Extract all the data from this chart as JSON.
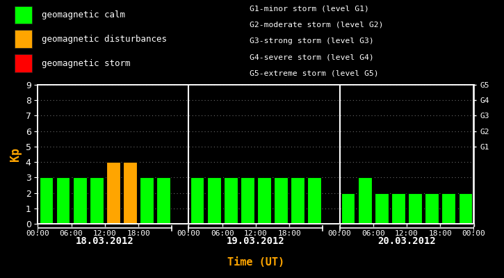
{
  "background_color": "#000000",
  "plot_bg_color": "#000000",
  "text_color": "#ffffff",
  "title_color": "#ffa500",
  "days": [
    "18.03.2012",
    "19.03.2012",
    "20.03.2012"
  ],
  "kp_values": [
    [
      3,
      3,
      3,
      3,
      4,
      4,
      3,
      3
    ],
    [
      3,
      3,
      3,
      3,
      3,
      3,
      3,
      3
    ],
    [
      2,
      3,
      2,
      2,
      2,
      2,
      2,
      2
    ]
  ],
  "bar_colors": [
    [
      "#00ff00",
      "#00ff00",
      "#00ff00",
      "#00ff00",
      "#ffa500",
      "#ffa500",
      "#00ff00",
      "#00ff00"
    ],
    [
      "#00ff00",
      "#00ff00",
      "#00ff00",
      "#00ff00",
      "#00ff00",
      "#00ff00",
      "#00ff00",
      "#00ff00"
    ],
    [
      "#00ff00",
      "#00ff00",
      "#00ff00",
      "#00ff00",
      "#00ff00",
      "#00ff00",
      "#00ff00",
      "#00ff00"
    ]
  ],
  "ylabel": "Kp",
  "xlabel": "Time (UT)",
  "ylim": [
    0,
    9
  ],
  "yticks": [
    0,
    1,
    2,
    3,
    4,
    5,
    6,
    7,
    8,
    9
  ],
  "right_ytick_positions": [
    5,
    6,
    7,
    8,
    9
  ],
  "right_ytick_names": [
    "G1",
    "G2",
    "G3",
    "G4",
    "G5"
  ],
  "legend_items": [
    {
      "label": "geomagnetic calm",
      "color": "#00ff00"
    },
    {
      "label": "geomagnetic disturbances",
      "color": "#ffa500"
    },
    {
      "label": "geomagnetic storm",
      "color": "#ff0000"
    }
  ],
  "storm_legend": [
    "G1-minor storm (level G1)",
    "G2-moderate storm (level G2)",
    "G3-strong storm (level G3)",
    "G4-severe storm (level G4)",
    "G5-extreme storm (level G5)"
  ],
  "divider_color": "#ffffff",
  "grid_color": "#777777",
  "axis_color": "#ffffff",
  "day_offsets": [
    0,
    9,
    18
  ],
  "bars_per_day": 8,
  "hour_labels": [
    "00:00",
    "06:00",
    "12:00",
    "18:00"
  ],
  "font_family": "monospace"
}
